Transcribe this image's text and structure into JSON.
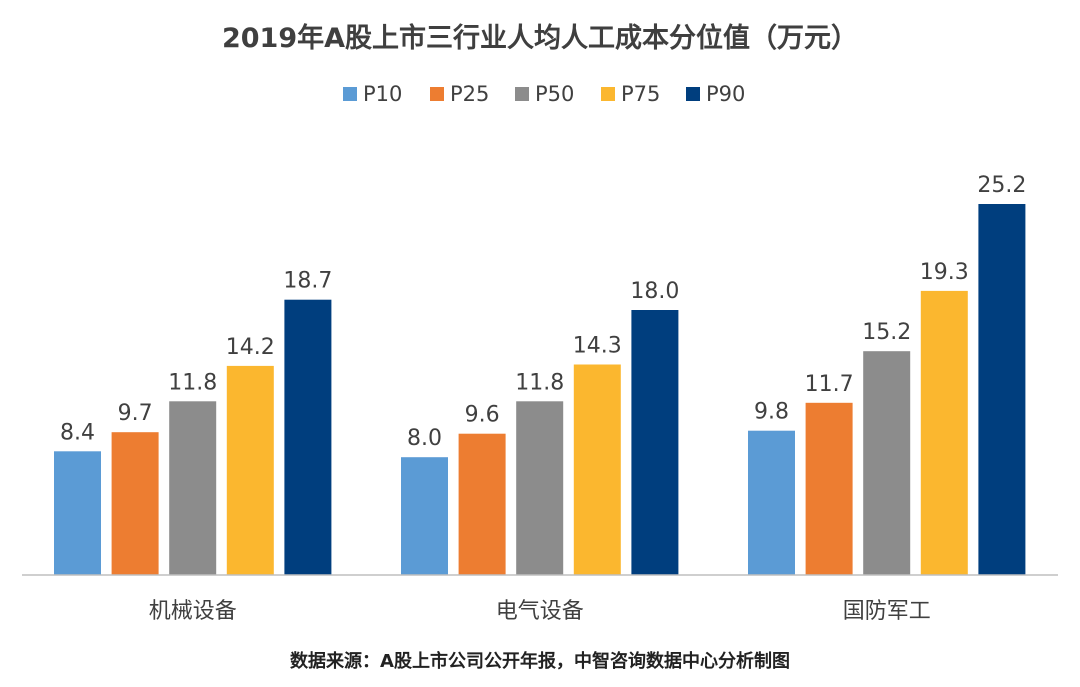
{
  "chart_data": {
    "type": "bar",
    "title": "2019年A股上市三行业人均人工成本分位值（万元）",
    "categories": [
      "机械设备",
      "电气设备",
      "国防军工"
    ],
    "series": [
      {
        "name": "P10",
        "values": [
          8.4,
          8.0,
          9.8
        ]
      },
      {
        "name": "P25",
        "values": [
          9.7,
          9.6,
          11.7
        ]
      },
      {
        "name": "P50",
        "values": [
          11.8,
          11.8,
          15.2
        ]
      },
      {
        "name": "P75",
        "values": [
          14.2,
          14.3,
          19.3
        ]
      },
      {
        "name": "P90",
        "values": [
          18.7,
          18.0,
          25.2
        ]
      }
    ],
    "xlabel": "",
    "ylabel": "",
    "ylim": [
      0,
      25.2
    ],
    "grid": false,
    "legend_position": "top-center",
    "source": "数据来源：A股上市公司公开年报，中智咨询数据中心分析制图"
  },
  "colors": {
    "P10": "#5b9bd5",
    "P25": "#ed7d31",
    "P50": "#8c8c8c",
    "P75": "#fbb72f",
    "P90": "#003e7e",
    "axis": "#bfbfbf"
  }
}
